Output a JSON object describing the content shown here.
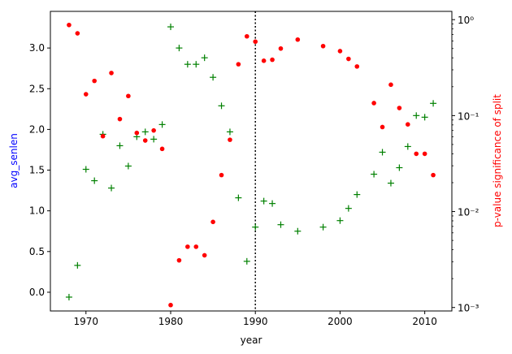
{
  "chart_data": {
    "type": "scatter",
    "xlabel": "year",
    "ylabel_left": "avg_senlen",
    "ylabel_right": "p-value significance of split",
    "xlim": [
      1965.8,
      2013.2
    ],
    "ylim_left": [
      -0.23,
      3.45
    ],
    "ylim_right": [
      0.00092,
      1.22
    ],
    "right_scale": "log",
    "xticks": [
      1970,
      1980,
      1990,
      2000,
      2010
    ],
    "yticks_left": [
      0.0,
      0.5,
      1.0,
      1.5,
      2.0,
      2.5,
      3.0
    ],
    "yticks_right": [
      0.001,
      0.01,
      0.1,
      1
    ],
    "yticks_right_labels": [
      "10⁻³",
      "10⁻²",
      "10⁻¹",
      "10⁰"
    ],
    "split_line_x": 1990,
    "colors": {
      "left": "#0000ff",
      "right": "#ff0000",
      "series_avg": "#008000",
      "series_p": "#ff0000",
      "split": "#000000"
    },
    "series": [
      {
        "name": "avg_senlen",
        "axis": "left",
        "marker": "plus",
        "x": [
          1968,
          1969,
          1970,
          1971,
          1972,
          1973,
          1974,
          1975,
          1976,
          1977,
          1978,
          1979,
          1980,
          1981,
          1982,
          1983,
          1984,
          1985,
          1986,
          1987,
          1988,
          1989,
          1990,
          1991,
          1992,
          1993,
          1995,
          1998,
          2000,
          2001,
          2002,
          2004,
          2005,
          2006,
          2007,
          2008,
          2009,
          2010,
          2011
        ],
        "y": [
          -0.06,
          0.33,
          1.51,
          1.37,
          1.94,
          1.28,
          1.8,
          1.55,
          1.91,
          1.97,
          1.88,
          2.06,
          3.26,
          3.0,
          2.8,
          2.8,
          2.88,
          2.64,
          2.29,
          1.97,
          1.16,
          0.38,
          0.8,
          1.12,
          1.09,
          0.83,
          0.75,
          0.8,
          0.88,
          1.03,
          1.2,
          1.45,
          1.72,
          1.34,
          1.53,
          1.79,
          2.17,
          2.15,
          2.32
        ]
      },
      {
        "name": "p-value significance of split",
        "axis": "right",
        "marker": "dot",
        "x": [
          1968,
          1969,
          1970,
          1971,
          1972,
          1973,
          1974,
          1975,
          1976,
          1977,
          1978,
          1979,
          1980,
          1981,
          1982,
          1983,
          1984,
          1985,
          1986,
          1987,
          1988,
          1989,
          1990,
          1991,
          1992,
          1993,
          1995,
          1998,
          2000,
          2001,
          2002,
          2004,
          2005,
          2006,
          2007,
          2008,
          2009,
          2010,
          2011
        ],
        "y": [
          0.88,
          0.72,
          0.167,
          0.23,
          0.061,
          0.278,
          0.092,
          0.16,
          0.066,
          0.055,
          0.07,
          0.045,
          0.00106,
          0.0031,
          0.0043,
          0.0043,
          0.0035,
          0.0078,
          0.024,
          0.056,
          0.343,
          0.67,
          0.59,
          0.373,
          0.382,
          0.5,
          0.62,
          0.53,
          0.47,
          0.39,
          0.325,
          0.135,
          0.076,
          0.21,
          0.12,
          0.081,
          0.04,
          0.04,
          0.024
        ]
      }
    ]
  }
}
